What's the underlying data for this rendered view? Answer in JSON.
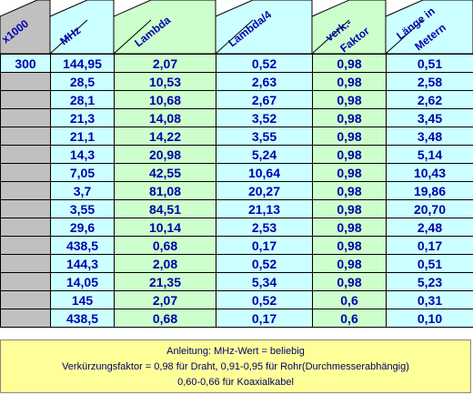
{
  "headers": [
    "x1000",
    "MHz",
    "Lambda",
    "Lambda/4",
    "verk.- Faktor",
    "Länge in Metern"
  ],
  "header_lines": {
    "verk": [
      "verk.-",
      "Faktor"
    ],
    "laenge": [
      "Länge in",
      "Metern"
    ]
  },
  "rows": [
    [
      "300",
      "144,95",
      "2,07",
      "0,52",
      "0,98",
      "0,51"
    ],
    [
      "",
      "28,5",
      "10,53",
      "2,63",
      "0,98",
      "2,58"
    ],
    [
      "",
      "28,1",
      "10,68",
      "2,67",
      "0,98",
      "2,62"
    ],
    [
      "",
      "21,3",
      "14,08",
      "3,52",
      "0,98",
      "3,45"
    ],
    [
      "",
      "21,1",
      "14,22",
      "3,55",
      "0,98",
      "3,48"
    ],
    [
      "",
      "14,3",
      "20,98",
      "5,24",
      "0,98",
      "5,14"
    ],
    [
      "",
      "7,05",
      "42,55",
      "10,64",
      "0,98",
      "10,43"
    ],
    [
      "",
      "3,7",
      "81,08",
      "20,27",
      "0,98",
      "19,86"
    ],
    [
      "",
      "3,55",
      "84,51",
      "21,13",
      "0,98",
      "20,70"
    ],
    [
      "",
      "29,6",
      "10,14",
      "2,53",
      "0,98",
      "2,48"
    ],
    [
      "",
      "438,5",
      "0,68",
      "0,17",
      "0,98",
      "0,17"
    ],
    [
      "",
      "144,3",
      "2,08",
      "0,52",
      "0,98",
      "0,51"
    ],
    [
      "",
      "14,05",
      "21,35",
      "5,34",
      "0,98",
      "5,23"
    ],
    [
      "",
      "145",
      "2,07",
      "0,52",
      "0,6",
      "0,31"
    ],
    [
      "",
      "438,5",
      "0,68",
      "0,17",
      "0,6",
      "0,10"
    ]
  ],
  "footer": {
    "line1": "Anleitung: MHz-Wert = beliebig",
    "line2": "Verkürzungsfaktor = 0,98 für Draht, 0,91-0,95 für Rohr(Durchmesserabhängig)",
    "line3": "0,60-0,66 für Koaxialkabel"
  },
  "colors": {
    "cyan": "#ccffff",
    "green": "#ccffcc",
    "gray": "#c0c0c0",
    "footer": "#ffff99",
    "text": "#0000aa"
  }
}
